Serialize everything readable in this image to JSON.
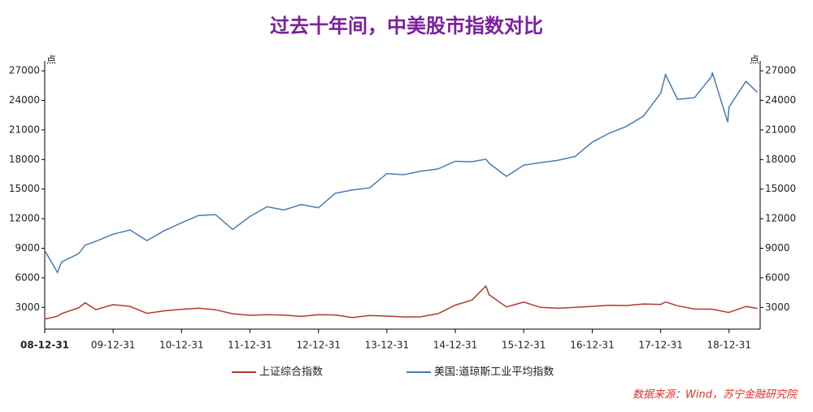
{
  "chart_data": {
    "type": "line",
    "title": "过去十年间，中美股市指数对比",
    "ylabel": "点",
    "y2label": "点",
    "source": "数据来源：Wind，苏宁金融研究院",
    "x": [
      "08-12-31",
      "09-03-09",
      "09-03-31",
      "09-06-30",
      "09-08-04",
      "09-09-30",
      "09-12-31",
      "10-03-31",
      "10-06-30",
      "10-09-30",
      "10-12-31",
      "11-03-31",
      "11-06-30",
      "11-09-30",
      "11-12-31",
      "12-03-31",
      "12-06-30",
      "12-09-30",
      "12-12-31",
      "13-03-31",
      "13-06-30",
      "13-09-30",
      "13-12-31",
      "14-03-31",
      "14-06-30",
      "14-09-30",
      "14-12-31",
      "15-03-31",
      "15-06-12",
      "15-06-30",
      "15-09-30",
      "15-12-31",
      "16-03-31",
      "16-06-30",
      "16-09-30",
      "16-12-31",
      "17-03-31",
      "17-06-30",
      "17-09-30",
      "17-12-31",
      "18-01-26",
      "18-03-31",
      "18-06-30",
      "18-09-30",
      "18-10-03",
      "18-12-24",
      "18-12-31",
      "19-03-31",
      "19-05-31"
    ],
    "series": [
      {
        "name": "上证综合指数",
        "color": "#b23a30",
        "values": [
          1821,
          2100,
          2373,
          2959,
          3471,
          2779,
          3277,
          3109,
          2398,
          2655,
          2808,
          2928,
          2762,
          2359,
          2199,
          2262,
          2225,
          2086,
          2269,
          2237,
          1979,
          2175,
          2116,
          2033,
          2048,
          2364,
          3234,
          3748,
          5166,
          4277,
          3053,
          3539,
          3004,
          2930,
          3005,
          3104,
          3223,
          3192,
          3349,
          3307,
          3558,
          3169,
          2847,
          2821,
          2821,
          2504,
          2494,
          3091,
          2899
        ]
      },
      {
        "name": "美国:道琼斯工业平均指数",
        "color": "#4a7ab5",
        "axis": "y2",
        "values": [
          8776,
          6547,
          7609,
          8447,
          9320,
          9712,
          10428,
          10857,
          9774,
          10788,
          11578,
          12320,
          12414,
          10913,
          12218,
          13212,
          12880,
          13437,
          13104,
          14579,
          14910,
          15130,
          16577,
          16458,
          16827,
          17043,
          17823,
          17776,
          18039,
          17620,
          16285,
          17425,
          17685,
          17930,
          18308,
          19763,
          20663,
          21350,
          22405,
          24719,
          26617,
          24103,
          24271,
          26458,
          26828,
          21792,
          23327,
          25929,
          24815
        ]
      }
    ],
    "xlim": [
      "08-12-31",
      "19-06-15"
    ],
    "xticks": [
      "08-12-31",
      "09-12-31",
      "10-12-31",
      "11-12-31",
      "12-12-31",
      "13-12-31",
      "14-12-31",
      "15-12-31",
      "16-12-31",
      "17-12-31",
      "18-12-31"
    ],
    "ylim": [
      800,
      28000
    ],
    "yticks": [
      3000,
      6000,
      9000,
      12000,
      15000,
      18000,
      21000,
      24000,
      27000
    ],
    "y2lim": [
      800,
      28000
    ],
    "y2ticks": [
      3000,
      6000,
      9000,
      12000,
      15000,
      18000,
      21000,
      24000,
      27000
    ]
  }
}
